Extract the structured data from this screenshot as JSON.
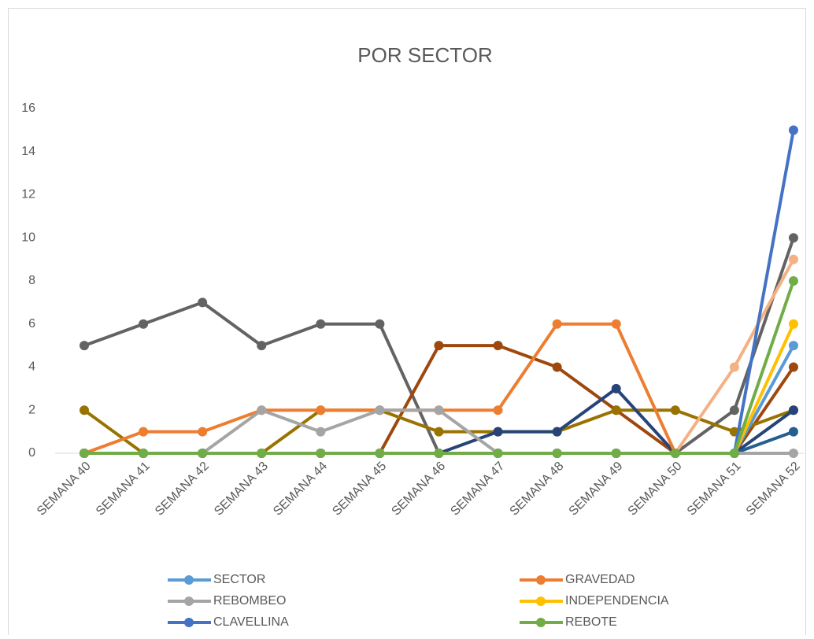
{
  "chart_data": {
    "type": "line",
    "title": "POR SECTOR",
    "categories": [
      "SEMANA 40",
      "SEMANA 41",
      "SEMANA 42",
      "SEMANA 43",
      "SEMANA 44",
      "SEMANA 45",
      "SEMANA 46",
      "SEMANA 47",
      "SEMANA 48",
      "SEMANA 49",
      "SEMANA 50",
      "SEMANA 51",
      "SEMANA 52"
    ],
    "ylim": [
      0,
      16
    ],
    "yticks": [
      0,
      2,
      4,
      6,
      8,
      10,
      12,
      14,
      16
    ],
    "grid": false,
    "legend": "bottom",
    "series": [
      {
        "color": "#636363",
        "values": [
          5,
          6,
          7,
          5,
          6,
          6,
          0,
          0,
          0,
          0,
          0,
          2,
          10
        ]
      },
      {
        "color": "#9e480e",
        "values": [
          0,
          0,
          0,
          0,
          0,
          0,
          5,
          5,
          4,
          2,
          0,
          0,
          4
        ]
      },
      {
        "color": "#997300",
        "values": [
          2,
          0,
          0,
          0,
          2,
          2,
          1,
          1,
          1,
          2,
          2,
          1,
          2
        ]
      },
      {
        "color": "#264478",
        "values": [
          0,
          0,
          0,
          0,
          0,
          0,
          0,
          1,
          1,
          3,
          0,
          0,
          2
        ]
      },
      {
        "color": "#255e91",
        "values": [
          0,
          0,
          0,
          0,
          0,
          0,
          0,
          0,
          0,
          0,
          0,
          0,
          1
        ]
      },
      {
        "color": "#f4b183",
        "values": [
          null,
          null,
          null,
          null,
          null,
          null,
          null,
          null,
          null,
          null,
          0,
          4,
          9
        ]
      },
      {
        "name": "SECTOR",
        "color": "#5b9bd5",
        "values": [
          0,
          0,
          0,
          0,
          0,
          0,
          0,
          0,
          0,
          0,
          0,
          0,
          5
        ]
      },
      {
        "name": "GRAVEDAD",
        "color": "#ed7d31",
        "values": [
          0,
          1,
          1,
          2,
          2,
          2,
          2,
          2,
          6,
          6,
          0,
          null,
          null
        ]
      },
      {
        "name": "REBOMBEO",
        "color": "#a5a5a5",
        "values": [
          0,
          0,
          0,
          2,
          1,
          2,
          2,
          0,
          0,
          0,
          0,
          0,
          0
        ]
      },
      {
        "name": "INDEPENDENCIA",
        "color": "#ffc000",
        "values": [
          0,
          0,
          0,
          0,
          0,
          0,
          0,
          0,
          0,
          0,
          0,
          0,
          6
        ]
      },
      {
        "name": "CLAVELLINA",
        "color": "#4472c4",
        "values": [
          0,
          0,
          0,
          0,
          0,
          0,
          0,
          0,
          0,
          0,
          0,
          0,
          15
        ]
      },
      {
        "name": "REBOTE",
        "color": "#70ad47",
        "values": [
          0,
          0,
          0,
          0,
          0,
          0,
          0,
          0,
          0,
          0,
          0,
          0,
          8
        ]
      }
    ]
  }
}
